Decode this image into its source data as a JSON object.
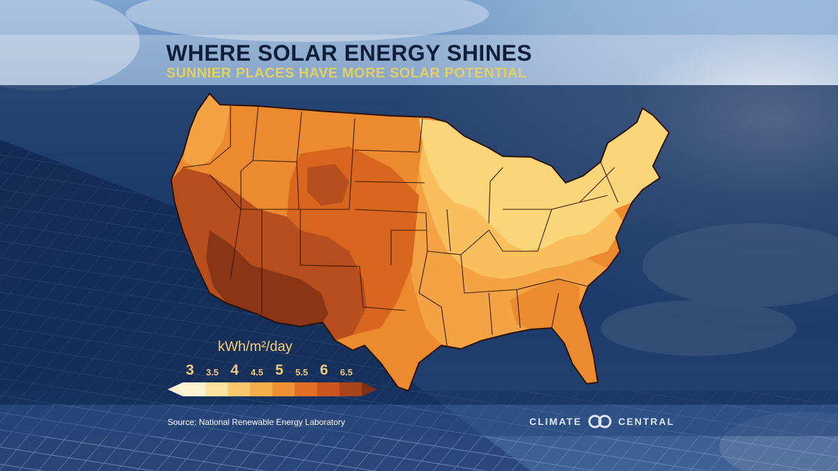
{
  "header": {
    "title": "WHERE SOLAR ENERGY SHINES",
    "subtitle": "SUNNIER PLACES HAVE MORE SOLAR POTENTIAL"
  },
  "legend": {
    "unit": "kWh/m²/day",
    "ticks": [
      {
        "label": "3",
        "major": true
      },
      {
        "label": "3.5",
        "major": false
      },
      {
        "label": "4",
        "major": true
      },
      {
        "label": "4.5",
        "major": false
      },
      {
        "label": "5",
        "major": true
      },
      {
        "label": "5.5",
        "major": false
      },
      {
        "label": "6",
        "major": true
      },
      {
        "label": "6.5",
        "major": false
      }
    ],
    "colors": [
      "#fff3d2",
      "#fde2a0",
      "#fbc96b",
      "#f6ad4c",
      "#ee9033",
      "#e06f25",
      "#c9551f",
      "#a8441b",
      "#7f3113"
    ]
  },
  "map": {
    "colors": {
      "very_high": "#8a3515",
      "high": "#b84e1d",
      "mid_high": "#d9661f",
      "mid": "#ec8a30",
      "low_mid": "#f3a244",
      "low": "#f9bf5c",
      "very_low": "#fbd57a",
      "border": "#3a1a0a"
    }
  },
  "footer": {
    "source": "Source: National Renewable Energy Laboratory",
    "brand_left": "CLIMATE",
    "brand_right": "CENTRAL"
  }
}
